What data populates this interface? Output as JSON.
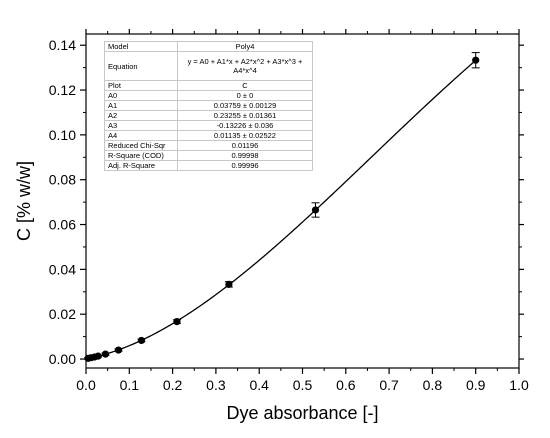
{
  "chart_data": {
    "type": "scatter",
    "xlabel": "Dye absorbance [-]",
    "ylabel": "C [% w/w]",
    "xlim": [
      0.0,
      1.0
    ],
    "ylim": [
      -0.004,
      0.145
    ],
    "xticks": [
      "0.0",
      "0.1",
      "0.2",
      "0.3",
      "0.4",
      "0.5",
      "0.6",
      "0.7",
      "0.8",
      "0.9",
      "1.0"
    ],
    "yticks": [
      "0.00",
      "0.02",
      "0.04",
      "0.06",
      "0.08",
      "0.10",
      "0.12",
      "0.14"
    ],
    "grid": false,
    "series": [
      {
        "type": "scatter",
        "x": [
          0.005,
          0.012,
          0.02,
          0.028,
          0.045,
          0.075,
          0.128,
          0.21,
          0.33,
          0.53,
          0.9
        ],
        "y": [
          0.0003,
          0.0006,
          0.0009,
          0.0013,
          0.0022,
          0.004,
          0.0083,
          0.0167,
          0.0333,
          0.0665,
          0.1333
        ],
        "error": [
          0.0004,
          0.0004,
          0.0004,
          0.0004,
          0.0005,
          0.0005,
          0.0006,
          0.0008,
          0.0012,
          0.0032,
          0.0034
        ]
      },
      {
        "type": "line",
        "fit": "Poly4",
        "coefficients": [
          0,
          0.03759,
          0.23255,
          -0.13226,
          0.01135
        ]
      }
    ],
    "fit_table": [
      {
        "key": "Model",
        "value": "Poly4"
      },
      {
        "key": "Equation",
        "value": "y = A0 + A1*x + A2*x^2 + A3*x^3 + A4*x^4"
      },
      {
        "key": "Plot",
        "value": "C"
      },
      {
        "key": "A0",
        "value": "0 ± 0"
      },
      {
        "key": "A1",
        "value": "0.03759 ± 0.00129"
      },
      {
        "key": "A2",
        "value": "0.23255 ± 0.01361"
      },
      {
        "key": "A3",
        "value": "-0.13226 ± 0.036"
      },
      {
        "key": "A4",
        "value": "0.01135 ± 0.02522"
      },
      {
        "key": "Reduced Chi-Sqr",
        "value": "0.01196"
      },
      {
        "key": "R-Square (COD)",
        "value": "0.99998"
      },
      {
        "key": "Adj. R-Square",
        "value": "0.99996"
      }
    ]
  }
}
